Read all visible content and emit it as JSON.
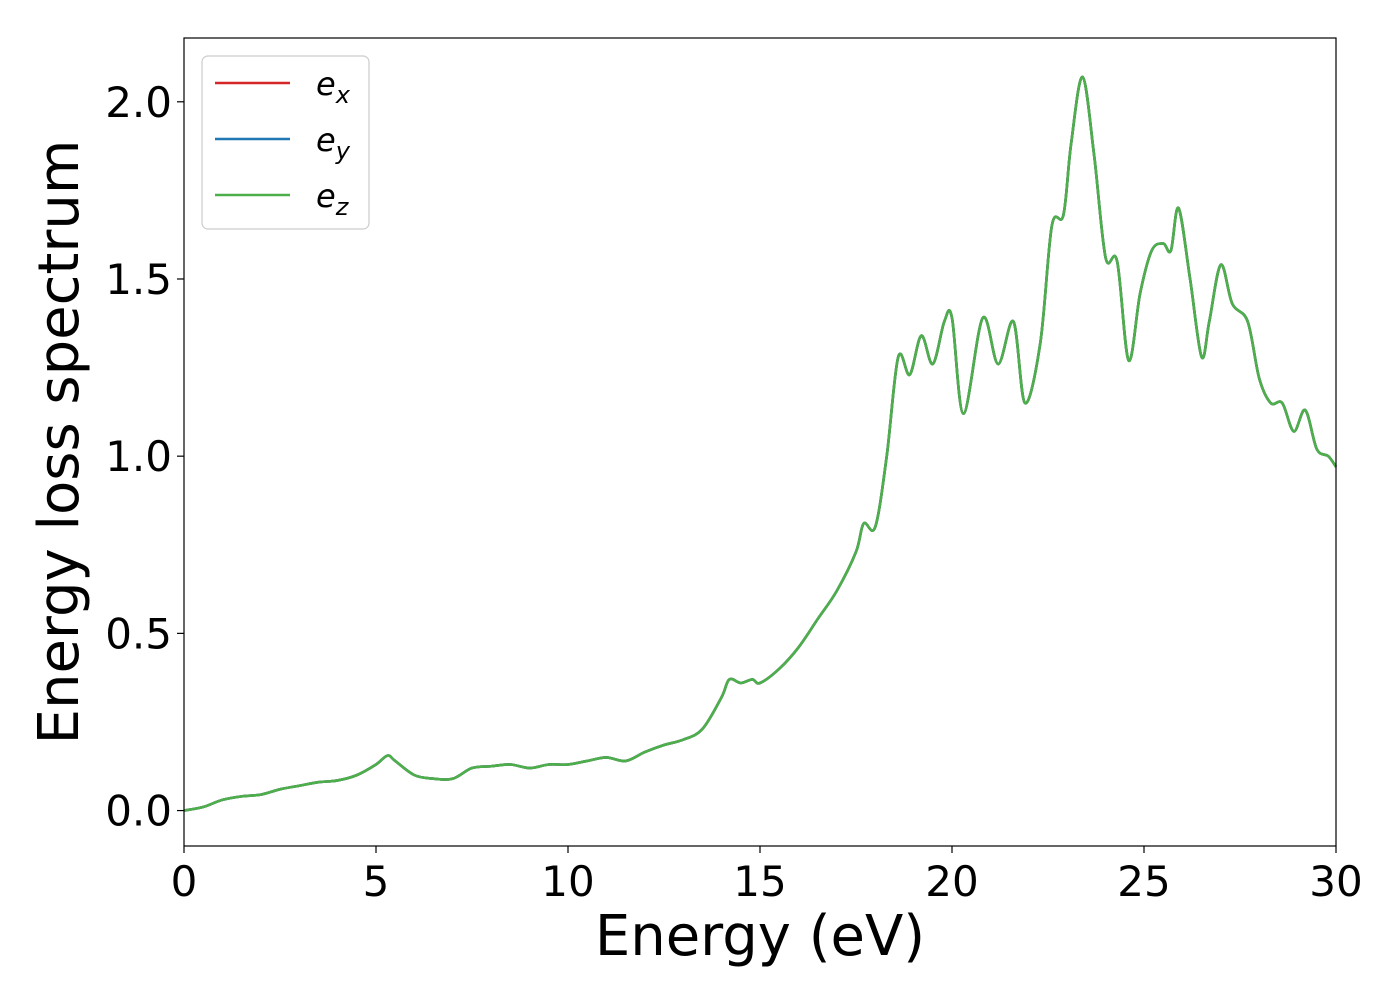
{
  "chart_data": {
    "type": "line",
    "title": "",
    "xlabel": "Energy (eV)",
    "ylabel": "Energy loss spectrum",
    "xlim": [
      0,
      30
    ],
    "ylim": [
      -0.1,
      2.18
    ],
    "xticks": [
      0,
      5,
      10,
      15,
      20,
      25,
      30
    ],
    "yticks": [
      0.0,
      0.5,
      1.0,
      1.5,
      2.0
    ],
    "xtick_labels": [
      "0",
      "5",
      "10",
      "15",
      "20",
      "25",
      "30"
    ],
    "ytick_labels": [
      "0.0",
      "0.5",
      "1.0",
      "1.5",
      "2.0"
    ],
    "grid": false,
    "legend_position": "top-left",
    "x": [
      0,
      0.5,
      1.0,
      1.5,
      2.0,
      2.5,
      3.0,
      3.5,
      4.0,
      4.5,
      5.0,
      5.3,
      5.5,
      6.0,
      6.5,
      7.0,
      7.5,
      8.0,
      8.5,
      9.0,
      9.5,
      10.0,
      10.5,
      11.0,
      11.5,
      12.0,
      12.5,
      13.0,
      13.5,
      14.0,
      14.2,
      14.5,
      14.8,
      15.0,
      15.5,
      16.0,
      16.5,
      17.0,
      17.5,
      17.7,
      18.0,
      18.3,
      18.6,
      18.9,
      19.2,
      19.5,
      19.8,
      20.0,
      20.3,
      20.8,
      21.2,
      21.6,
      21.9,
      22.3,
      22.6,
      22.9,
      23.1,
      23.4,
      23.7,
      24.0,
      24.3,
      24.6,
      24.9,
      25.2,
      25.5,
      25.7,
      25.9,
      26.2,
      26.5,
      26.7,
      27.0,
      27.3,
      27.7,
      28.0,
      28.3,
      28.6,
      28.9,
      29.2,
      29.5,
      29.8,
      30.0
    ],
    "series": [
      {
        "name": "e_x",
        "color": "#d62728",
        "values": [
          0.0,
          0.01,
          0.03,
          0.04,
          0.045,
          0.06,
          0.07,
          0.08,
          0.085,
          0.1,
          0.13,
          0.155,
          0.14,
          0.1,
          0.09,
          0.09,
          0.12,
          0.125,
          0.13,
          0.12,
          0.13,
          0.13,
          0.14,
          0.15,
          0.14,
          0.165,
          0.185,
          0.2,
          0.23,
          0.32,
          0.37,
          0.36,
          0.37,
          0.36,
          0.4,
          0.46,
          0.54,
          0.62,
          0.73,
          0.81,
          0.8,
          1.0,
          1.28,
          1.23,
          1.34,
          1.26,
          1.38,
          1.39,
          1.12,
          1.39,
          1.26,
          1.38,
          1.15,
          1.32,
          1.65,
          1.68,
          1.88,
          2.07,
          1.85,
          1.56,
          1.55,
          1.27,
          1.46,
          1.58,
          1.6,
          1.58,
          1.7,
          1.5,
          1.28,
          1.38,
          1.54,
          1.43,
          1.38,
          1.22,
          1.15,
          1.15,
          1.07,
          1.13,
          1.02,
          1.0,
          0.97
        ]
      },
      {
        "name": "e_y",
        "color": "#1f77b4",
        "values": [
          0.0,
          0.01,
          0.03,
          0.04,
          0.045,
          0.06,
          0.07,
          0.08,
          0.085,
          0.1,
          0.13,
          0.155,
          0.14,
          0.1,
          0.09,
          0.09,
          0.12,
          0.125,
          0.13,
          0.12,
          0.13,
          0.13,
          0.14,
          0.15,
          0.14,
          0.165,
          0.185,
          0.2,
          0.23,
          0.32,
          0.37,
          0.36,
          0.37,
          0.36,
          0.4,
          0.46,
          0.54,
          0.62,
          0.73,
          0.81,
          0.8,
          1.0,
          1.28,
          1.23,
          1.34,
          1.26,
          1.38,
          1.39,
          1.12,
          1.39,
          1.26,
          1.38,
          1.15,
          1.32,
          1.65,
          1.68,
          1.88,
          2.07,
          1.85,
          1.56,
          1.55,
          1.27,
          1.46,
          1.58,
          1.6,
          1.58,
          1.7,
          1.5,
          1.28,
          1.38,
          1.54,
          1.43,
          1.38,
          1.22,
          1.15,
          1.15,
          1.07,
          1.13,
          1.02,
          1.0,
          0.97
        ]
      },
      {
        "name": "e_z",
        "color": "#4daf4a",
        "values": [
          0.0,
          0.01,
          0.03,
          0.04,
          0.045,
          0.06,
          0.07,
          0.08,
          0.085,
          0.1,
          0.13,
          0.155,
          0.14,
          0.1,
          0.09,
          0.09,
          0.12,
          0.125,
          0.13,
          0.12,
          0.13,
          0.13,
          0.14,
          0.15,
          0.14,
          0.165,
          0.185,
          0.2,
          0.23,
          0.32,
          0.37,
          0.36,
          0.37,
          0.36,
          0.4,
          0.46,
          0.54,
          0.62,
          0.73,
          0.81,
          0.8,
          1.0,
          1.28,
          1.23,
          1.34,
          1.26,
          1.38,
          1.39,
          1.12,
          1.39,
          1.26,
          1.38,
          1.15,
          1.32,
          1.65,
          1.68,
          1.88,
          2.07,
          1.85,
          1.56,
          1.55,
          1.27,
          1.46,
          1.58,
          1.6,
          1.58,
          1.7,
          1.5,
          1.28,
          1.38,
          1.54,
          1.43,
          1.38,
          1.22,
          1.15,
          1.15,
          1.07,
          1.13,
          1.02,
          1.0,
          0.97
        ]
      }
    ],
    "legend": [
      {
        "base": "e",
        "sub": "x"
      },
      {
        "base": "e",
        "sub": "y"
      },
      {
        "base": "e",
        "sub": "z"
      }
    ]
  }
}
